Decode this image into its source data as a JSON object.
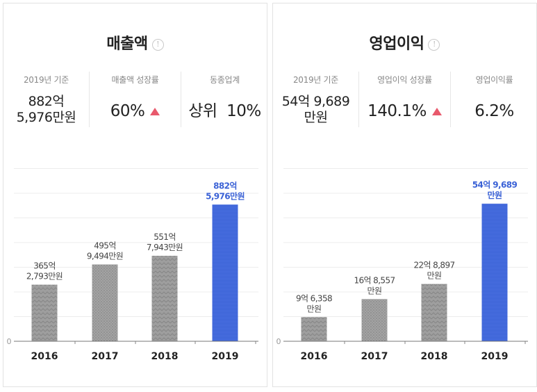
{
  "colors": {
    "bar_gray": "#9a9a9a",
    "bar_highlight": "#3b62d6",
    "highlight_text": "#3b62d6",
    "up_arrow": "#e8596c"
  },
  "panels": [
    {
      "title": "매출액",
      "stats": [
        {
          "label": "2019년 기준",
          "value": "882억\n5,976만원"
        },
        {
          "label": "매출액 성장률",
          "value": "60%",
          "trend": "up"
        },
        {
          "label": "동종업계",
          "value": "상위  10%"
        }
      ],
      "chart_data": {
        "type": "bar",
        "categories": [
          "2016",
          "2017",
          "2018",
          "2019"
        ],
        "values": [
          365.2793,
          495.9494,
          551.7943,
          882.5976
        ],
        "unit": "억원",
        "data_labels": [
          "365억\n2,793만원",
          "495억\n9,494만원",
          "551억\n7,943만원",
          "882억\n5,976만원"
        ],
        "highlight_index": 3,
        "ylim": [
          0,
          1050
        ],
        "y_tick_label": "0",
        "grid": true
      }
    },
    {
      "title": "영업이익",
      "stats": [
        {
          "label": "2019년 기준",
          "value": "54억 9,689\n만원"
        },
        {
          "label": "영업이익 성장률",
          "value": "140.1%",
          "trend": "up"
        },
        {
          "label": "영업이익률",
          "value": "6.2%"
        }
      ],
      "chart_data": {
        "type": "bar",
        "categories": [
          "2016",
          "2017",
          "2018",
          "2019"
        ],
        "values": [
          9.6358,
          16.8557,
          22.8897,
          54.9689
        ],
        "unit": "억원",
        "data_labels": [
          "9억 6,358\n만원",
          "16억 8,557\n만원",
          "22억 8,897\n만원",
          "54억 9,689\n만원"
        ],
        "highlight_index": 3,
        "ylim": [
          0,
          65
        ],
        "y_tick_label": "0",
        "grid": true
      }
    }
  ]
}
